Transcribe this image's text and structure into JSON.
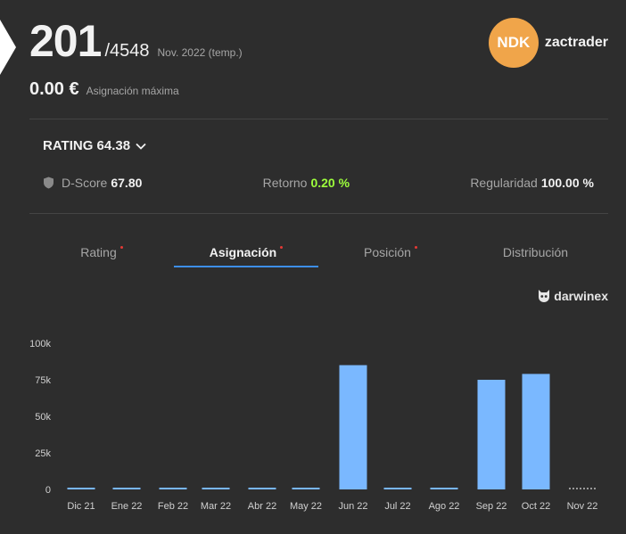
{
  "header": {
    "rank": "201",
    "rank_total": "/4548",
    "period": "Nov. 2022 (temp.)",
    "allocation_value": "0.00 €",
    "allocation_label": "Asignación máxima",
    "badge_text": "NDK",
    "username": "zactrader"
  },
  "rating": {
    "label": "RATING 64.38",
    "dscore_label": "D-Score",
    "dscore_value": "67.80",
    "return_label": "Retorno",
    "return_value": "0.20 %",
    "regularity_label": "Regularidad",
    "regularity_value": "100.00 %"
  },
  "tabs": [
    {
      "label": "Rating",
      "dot": true
    },
    {
      "label": "Asignación",
      "dot": true,
      "active": true
    },
    {
      "label": "Posición",
      "dot": true
    },
    {
      "label": "Distribución",
      "dot": false
    }
  ],
  "brand": "darwinex",
  "colors": {
    "background": "#2d2d2d",
    "bar": "#7ab8ff",
    "accent_tab": "#3d8ee8",
    "badge": "#f0a54a",
    "return_green": "#9dff3c"
  },
  "chart_data": {
    "type": "bar",
    "categories": [
      "Dic 21",
      "Ene 22",
      "Feb 22",
      "Mar 22",
      "Abr 22",
      "May 22",
      "Jun 22",
      "Jul 22",
      "Ago 22",
      "Sep 22",
      "Oct 22",
      "Nov 22"
    ],
    "values": [
      1200,
      1200,
      1200,
      1200,
      1200,
      1200,
      85000,
      1200,
      1200,
      75000,
      79000,
      null
    ],
    "yticks": [
      "0",
      "25k",
      "50k",
      "75k",
      "100k"
    ],
    "ylim": [
      0,
      100000
    ],
    "grid": false,
    "last_bar_pending": true
  }
}
